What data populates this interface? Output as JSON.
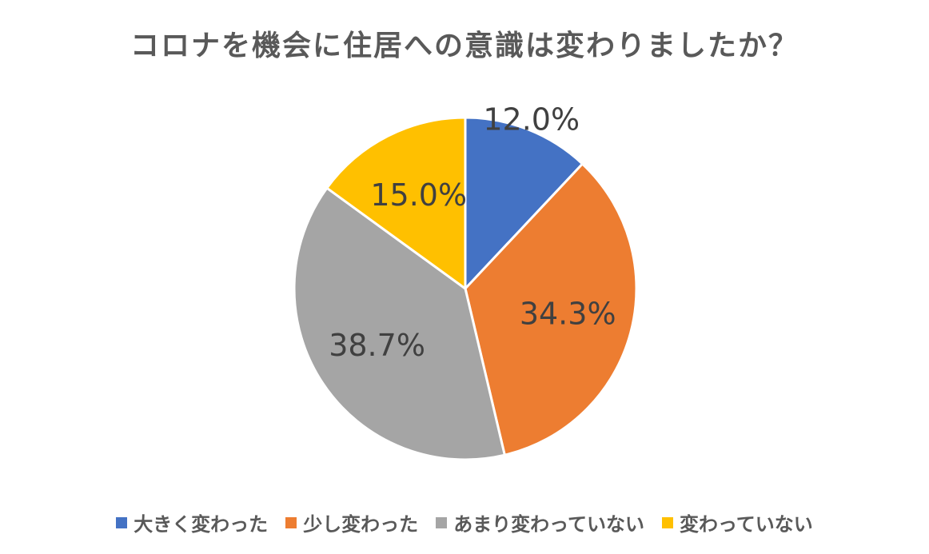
{
  "chart_data": {
    "type": "pie",
    "title": "コロナを機会に住居への意識は変わりましたか？",
    "categories": [
      "大きく変わった",
      "少し変わった",
      "あまり変わっていない",
      "変わっていない"
    ],
    "values": [
      12.0,
      34.3,
      38.7,
      15.0
    ],
    "data_labels": [
      "12.0%",
      "34.3%",
      "38.7%",
      "15.0%"
    ],
    "colors": [
      "#4472C4",
      "#ED7D31",
      "#A5A5A5",
      "#FFC000"
    ],
    "start_angle": "12 o'clock",
    "direction": "clockwise",
    "legend_position": "bottom"
  }
}
